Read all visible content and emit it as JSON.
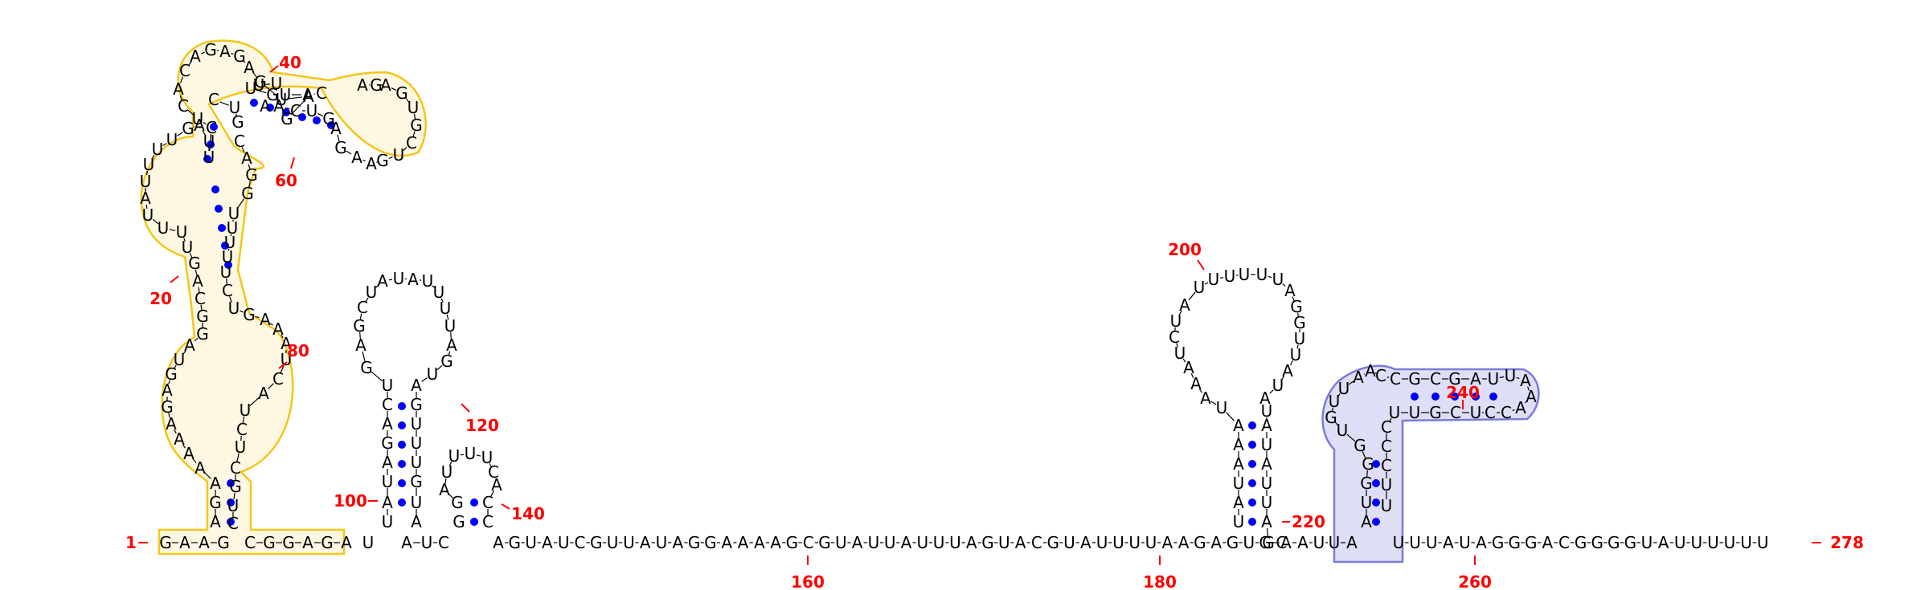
{
  "sequence": "GAAGCGGAGAAGUAUCGUUAUAGGAAAAGCGUAUUAUUUAGUACGUAUUUUAAGAGUGCGAAUUAUUUUAUAGGGACGGGGUAUUUUUU",
  "numbers": [
    "1",
    "20",
    "40",
    "60",
    "80",
    "100",
    "120",
    "140",
    "160",
    "180",
    "200",
    "220",
    "240",
    "260",
    "278"
  ],
  "segments": [
    {
      "id": "5prime-hairpin-a",
      "start_nt": 1,
      "label": "GAAG"
    },
    {
      "id": "5prime-hairpin-b",
      "label": "CGGAGA"
    },
    {
      "id": "linker",
      "label": "AGUAUCGUUAUAGGAAAAGCGUAUUAUUUAGUACGUAUUUUAAGAGUGC"
    },
    {
      "id": "3prime-tail",
      "label": "UUUAUAGGGACGGGGUAUUUUUU"
    }
  ],
  "highlight_colors": {
    "domain-a": "#f5c518",
    "domain-b": "#7b7bdc"
  },
  "colors": {
    "nucleotide": "#000000",
    "number": "#ff0000",
    "pair": "#0000ff"
  }
}
